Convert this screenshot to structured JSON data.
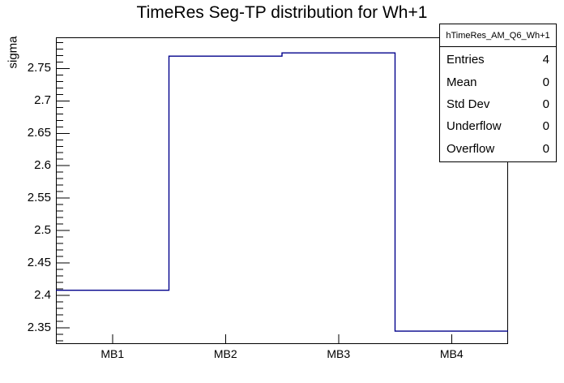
{
  "title": "TimeRes Seg-TP distribution for Wh+1",
  "chart_data": {
    "type": "step-histogram",
    "title": "TimeRes Seg-TP distribution for Wh+1",
    "xlabel": "",
    "ylabel": "sigma",
    "categories": [
      "MB1",
      "MB2",
      "MB3",
      "MB4"
    ],
    "values": [
      2.408,
      2.769,
      2.774,
      2.345
    ],
    "ylim": [
      2.325,
      2.798
    ],
    "ytick_values": [
      2.35,
      2.4,
      2.45,
      2.5,
      2.55,
      2.6,
      2.65,
      2.7,
      2.75
    ],
    "ytick_labels": [
      "2.35",
      "2.4",
      "2.45",
      "2.5",
      "2.55",
      "2.6",
      "2.65",
      "2.7",
      "2.75"
    ],
    "minor_tick_step": 0.01,
    "grid": "off",
    "line_color": "#00008B",
    "frame_color": "#000000",
    "background_color": "#ffffff",
    "legend_position": "top-right"
  },
  "stats_box": {
    "title": "hTimeRes_AM_Q6_Wh+1",
    "rows": [
      {
        "label": "Entries",
        "value": "4"
      },
      {
        "label": "Mean",
        "value": "0"
      },
      {
        "label": "Std Dev",
        "value": "0"
      },
      {
        "label": "Underflow",
        "value": "0"
      },
      {
        "label": "Overflow",
        "value": "0"
      }
    ]
  }
}
